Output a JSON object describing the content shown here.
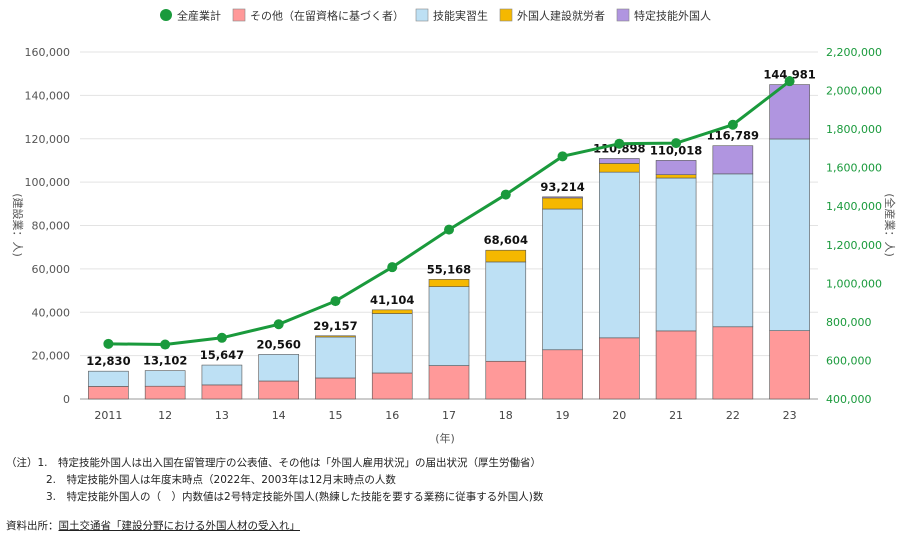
{
  "chart_data": {
    "type": "bar",
    "x_axis_label": "(年)",
    "y_left_label": "(建設業：人)",
    "y_right_label": "(全産業：人)",
    "categories": [
      "2011",
      "12",
      "13",
      "14",
      "15",
      "16",
      "17",
      "18",
      "19",
      "20",
      "21",
      "22",
      "23"
    ],
    "series": [
      {
        "name": "その他（在留資格に基づく者）",
        "color": "#ff9999",
        "values": [
          5800,
          5900,
          6500,
          8300,
          9700,
          12000,
          15400,
          17400,
          22700,
          28200,
          31400,
          33300,
          31500
        ]
      },
      {
        "name": "技能実習生",
        "color": "#bde0f4",
        "values": [
          7030,
          7202,
          9147,
          12260,
          18900,
          27400,
          36400,
          45800,
          64900,
          76400,
          70500,
          70500,
          88400
        ]
      },
      {
        "name": "外国人建設就労者",
        "color": "#f5b800",
        "values": [
          0,
          0,
          0,
          0,
          557,
          1704,
          3368,
          5404,
          5114,
          4038,
          1518,
          0,
          0
        ]
      },
      {
        "name": "特定技能外国人",
        "color": "#b095e0",
        "values": [
          0,
          0,
          0,
          0,
          0,
          0,
          0,
          0,
          500,
          2260,
          6600,
          12989,
          25081
        ]
      }
    ],
    "totals": [
      "12,830",
      "13,102",
      "15,647",
      "20,560",
      "29,157",
      "41,104",
      "55,168",
      "68,604",
      "93,214",
      "110,898",
      "110,018",
      "116,789",
      "144,981"
    ],
    "line": {
      "name": "全産業計",
      "color": "#1a9a3c",
      "values": [
        686246,
        682450,
        717504,
        787627,
        907896,
        1083769,
        1278670,
        1460463,
        1658804,
        1724328,
        1727221,
        1822725,
        2048675
      ]
    },
    "y_left": {
      "min": 0,
      "max": 160000,
      "ticks": [
        "0",
        "20,000",
        "40,000",
        "60,000",
        "80,000",
        "100,000",
        "120,000",
        "140,000",
        "160,000"
      ]
    },
    "y_right": {
      "min": 400000,
      "max": 2200000,
      "ticks": [
        "400,000",
        "600,000",
        "800,000",
        "1,000,000",
        "1,200,000",
        "1,400,000",
        "1,600,000",
        "1,800,000",
        "2,000,000",
        "2,200,000"
      ]
    },
    "legend_position": "top"
  },
  "legend": {
    "items": [
      {
        "label": "全産業計",
        "color": "#1a9a3c",
        "shape": "circle"
      },
      {
        "label": "その他（在留資格に基づく者）",
        "color": "#ff9999",
        "shape": "square"
      },
      {
        "label": "技能実習生",
        "color": "#bde0f4",
        "shape": "square"
      },
      {
        "label": "外国人建設就労者",
        "color": "#f5b800",
        "shape": "square"
      },
      {
        "label": "特定技能外国人",
        "color": "#b095e0",
        "shape": "square"
      }
    ]
  },
  "notes": {
    "n1": "（注）1.　特定技能外国人は出入国在留管理庁の公表値、その他は「外国人雇用状況」の届出状況（厚生労働省）",
    "n2": "2.　特定技能外国人は年度末時点（2022年、2003年は12月末時点の人数",
    "n3": "3.　特定技能外国人の（　）内数値は2号特定技能外国人(熟練した技能を要する業務に従事する外国人)数"
  },
  "source": {
    "prefix": "資料出所：",
    "link": "国土交通省「建設分野における外国人材の受入れ」"
  }
}
